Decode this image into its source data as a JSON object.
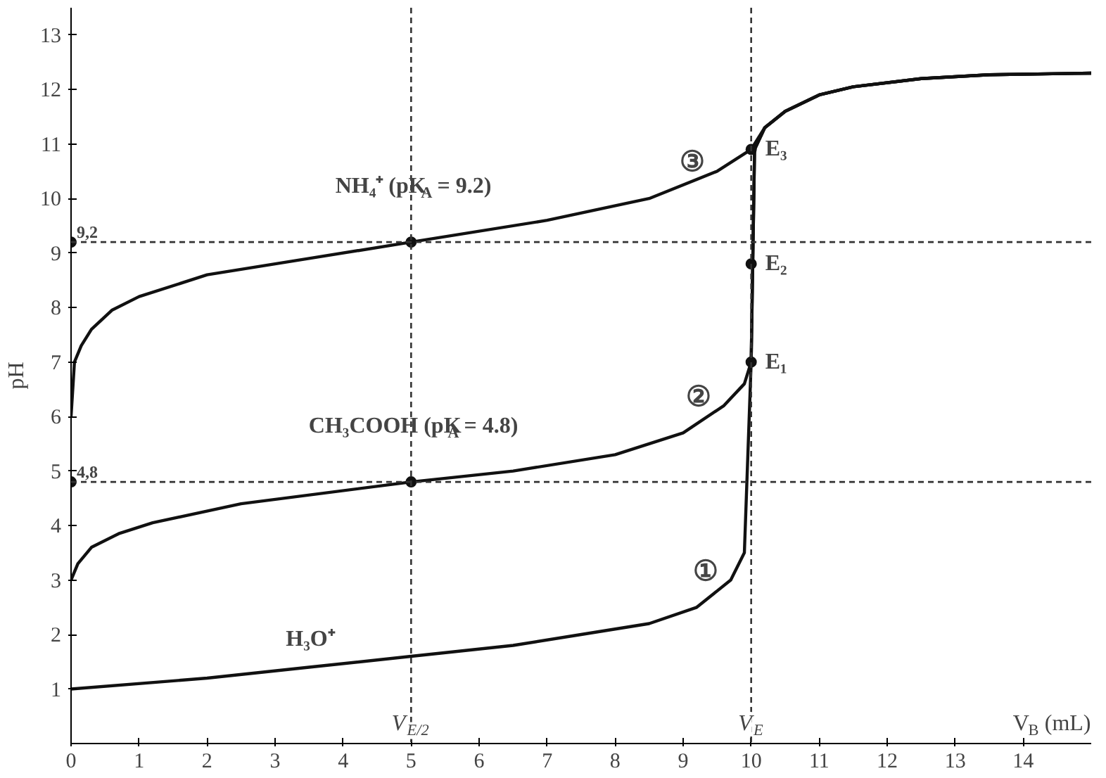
{
  "chart_data": {
    "type": "line",
    "xlabel": "V$_{B}$ (mL)",
    "ylabel": "pH",
    "xlim": [
      0,
      15
    ],
    "ylim": [
      0,
      13.5
    ],
    "xticks": [
      0,
      1,
      2,
      3,
      4,
      5,
      6,
      7,
      8,
      9,
      10,
      11,
      12,
      13,
      14
    ],
    "yticks": [
      1,
      2,
      3,
      4,
      5,
      6,
      7,
      8,
      9,
      10,
      11,
      12,
      13
    ],
    "grid": false,
    "line_style": "solid",
    "marker": "none",
    "series": [
      {
        "color": "#111111",
        "x": [
          0,
          2,
          3.5,
          5,
          6.5,
          7.5,
          8.5,
          9.2,
          9.7,
          9.9,
          10,
          10.05,
          10.2,
          10.5,
          11,
          11.5,
          12.5,
          13.5,
          15
        ],
        "values": [
          1,
          1.2,
          1.4,
          1.6,
          1.8,
          2.0,
          2.2,
          2.5,
          3,
          3.5,
          7,
          10.9,
          11.3,
          11.6,
          11.9,
          12.05,
          12.2,
          12.27,
          12.3
        ]
      },
      {
        "color": "#111111",
        "x": [
          0,
          0.1,
          0.3,
          0.7,
          1.2,
          2.5,
          5,
          6.5,
          8,
          9,
          9.6,
          9.9,
          10,
          10.05,
          10.2,
          10.5,
          11,
          11.5,
          12.5,
          13.5,
          15
        ],
        "values": [
          3,
          3.3,
          3.6,
          3.85,
          4.05,
          4.4,
          4.8,
          5.0,
          5.3,
          5.7,
          6.2,
          6.6,
          7,
          10.9,
          11.3,
          11.6,
          11.9,
          12.05,
          12.2,
          12.27,
          12.3
        ]
      },
      {
        "color": "#111111",
        "x": [
          0,
          0.05,
          0.15,
          0.3,
          0.6,
          1,
          2,
          3.5,
          5,
          7,
          8.5,
          9.5,
          10,
          10.2,
          10.5,
          11,
          11.5,
          12.5,
          13.5,
          15
        ],
        "values": [
          6,
          7,
          7.3,
          7.6,
          7.95,
          8.2,
          8.6,
          8.9,
          9.2,
          9.6,
          10,
          10.5,
          10.9,
          11.3,
          11.6,
          11.9,
          12.05,
          12.2,
          12.27,
          12.3
        ]
      },
      {
        "type": "scatter",
        "color": "#111111",
        "marker": "circle",
        "x": [
          0,
          0,
          5,
          5,
          10,
          10,
          10
        ],
        "values": [
          9.2,
          4.8,
          9.2,
          4.8,
          7,
          8.8,
          10.9
        ]
      }
    ],
    "ref_lines": [
      {
        "axis": "y",
        "value": 9.2,
        "label": "9,2",
        "line_style": "dashed"
      },
      {
        "axis": "y",
        "value": 4.8,
        "label": "4,8",
        "line_style": "dashed"
      },
      {
        "axis": "x",
        "value": 5,
        "label": "V$_{E/2}$",
        "line_style": "dashed"
      },
      {
        "axis": "x",
        "value": 10,
        "label": "V$_{E}$",
        "line_style": "dashed"
      }
    ],
    "annotations": [
      {
        "text": "NH₄⁺ (pK$_{A}$ = 9.2)",
        "x": 5,
        "y": 9.7
      },
      {
        "text": "CH₃COOH (pK$_{A}$ = 4.8)",
        "x": 5,
        "y": 5.3
      },
      {
        "text": "H₃O⁺",
        "x": 3.5,
        "y": 1.4
      },
      {
        "text": "①",
        "x": 9.7,
        "y": 3
      },
      {
        "text": "②",
        "x": 9.6,
        "y": 6.2
      },
      {
        "text": "③",
        "x": 9.5,
        "y": 10.5
      },
      {
        "text": "E₁",
        "x": 10,
        "y": 7
      },
      {
        "text": "E₂",
        "x": 10,
        "y": 8.8
      },
      {
        "text": "E₃",
        "x": 10,
        "y": 10.9
      }
    ]
  }
}
